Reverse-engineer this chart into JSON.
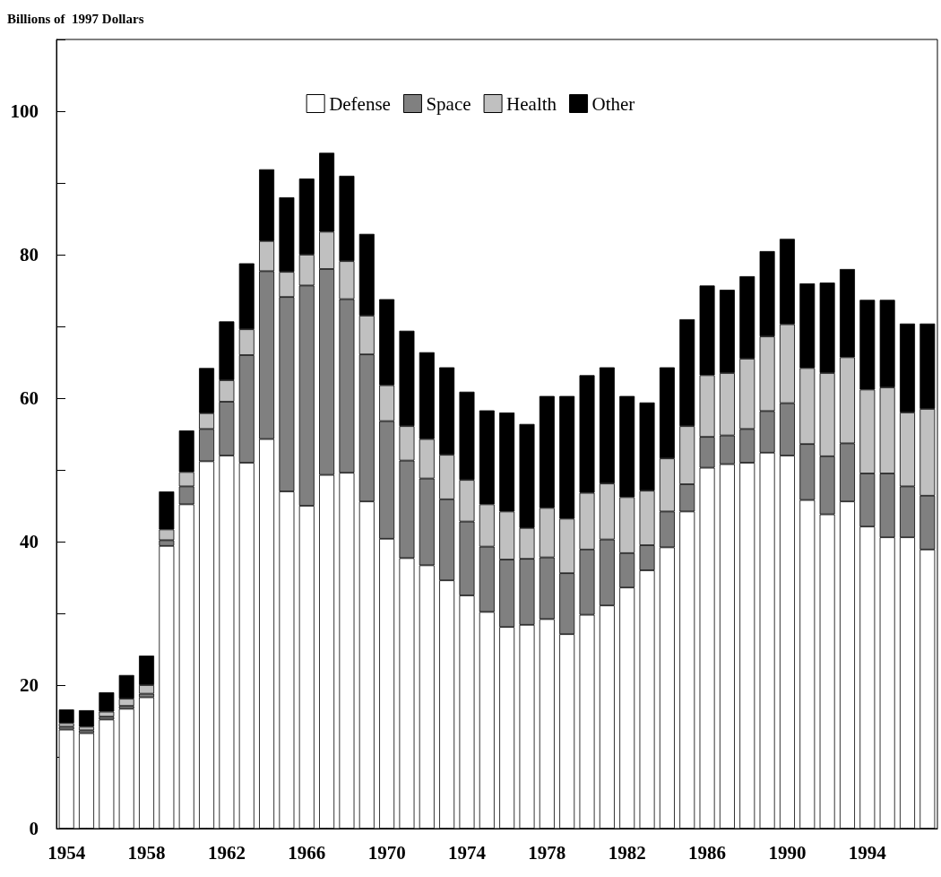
{
  "chart_data": {
    "type": "bar",
    "ylabel": "Billions of  1997 Dollars",
    "stacked": true,
    "legend": "top",
    "ylim": [
      0,
      110
    ],
    "yticks": [
      0,
      {
        "value": 10,
        "label": null
      },
      20,
      {
        "value": 30,
        "label": null
      },
      40,
      {
        "value": 50,
        "label": null
      },
      60,
      {
        "value": 70,
        "label": null
      },
      80,
      {
        "value": 90,
        "label": null
      },
      100,
      {
        "value": 110,
        "label": null
      }
    ],
    "categories": [
      "1954",
      null,
      null,
      null,
      "1958",
      null,
      null,
      null,
      "1962",
      null,
      null,
      null,
      "1966",
      null,
      null,
      null,
      "1970",
      null,
      null,
      null,
      "1974",
      null,
      null,
      null,
      "1978",
      null,
      null,
      null,
      "1982",
      null,
      null,
      null,
      "1986",
      null,
      null,
      null,
      "1990",
      null,
      null,
      null,
      "1994",
      null,
      null,
      null
    ],
    "series": [
      {
        "name": "Defense",
        "color": "#ffffff",
        "values": [
          13.8,
          13.3,
          15.2,
          16.7,
          18.3,
          39.4,
          45.2,
          51.2,
          52.0,
          51.0,
          54.3,
          47.0,
          45.0,
          49.3,
          49.6,
          45.6,
          40.4,
          37.7,
          36.7,
          34.6,
          32.5,
          30.2,
          28.1,
          28.4,
          29.2,
          27.1,
          29.8,
          31.1,
          33.6,
          36.0,
          39.2,
          44.2,
          50.3,
          50.8,
          51.0,
          52.4,
          52.0,
          45.8,
          43.8,
          45.6,
          42.1,
          40.6,
          40.6,
          38.9
        ]
      },
      {
        "name": "Space",
        "color": "#808080",
        "values": [
          0.4,
          0.4,
          0.4,
          0.4,
          0.5,
          0.8,
          2.5,
          4.5,
          7.5,
          15.0,
          23.4,
          27.1,
          30.7,
          28.7,
          24.2,
          20.5,
          16.4,
          13.6,
          12.1,
          11.3,
          10.3,
          9.1,
          9.4,
          9.2,
          8.6,
          8.5,
          9.1,
          9.2,
          4.8,
          3.5,
          5.0,
          3.8,
          4.3,
          4.0,
          4.7,
          5.8,
          7.3,
          7.8,
          8.1,
          8.1,
          7.4,
          8.9,
          7.1,
          7.5
        ]
      },
      {
        "name": "Health",
        "color": "#c0c0c0",
        "values": [
          0.5,
          0.5,
          0.7,
          1.0,
          1.2,
          1.5,
          2.0,
          2.2,
          3.0,
          3.6,
          4.2,
          3.5,
          4.3,
          5.2,
          5.3,
          5.4,
          5.0,
          4.8,
          5.5,
          6.2,
          5.8,
          5.9,
          6.7,
          4.3,
          6.9,
          7.6,
          7.9,
          7.8,
          7.8,
          7.6,
          7.4,
          8.1,
          8.6,
          8.7,
          9.8,
          10.4,
          11.0,
          10.6,
          11.6,
          12.0,
          11.7,
          12.0,
          10.3,
          12.1
        ]
      },
      {
        "name": "Other",
        "color": "#000000",
        "values": [
          1.9,
          2.3,
          2.7,
          3.3,
          4.1,
          5.3,
          5.8,
          6.3,
          8.2,
          9.2,
          10.0,
          10.4,
          10.6,
          11.0,
          11.9,
          11.4,
          12.0,
          13.3,
          12.1,
          12.2,
          12.3,
          13.1,
          13.8,
          14.5,
          15.6,
          17.1,
          16.4,
          16.2,
          14.1,
          12.3,
          12.7,
          14.9,
          12.5,
          11.6,
          11.5,
          11.9,
          11.9,
          11.8,
          12.6,
          12.3,
          12.5,
          12.2,
          12.4,
          11.9
        ]
      }
    ]
  }
}
